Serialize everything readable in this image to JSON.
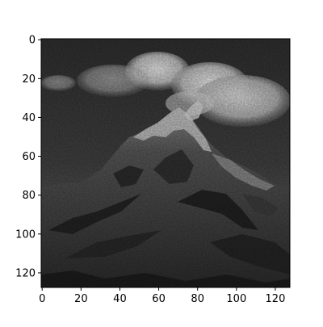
{
  "image": {
    "subject": "mountain-peak-photo",
    "colormap": "grayscale",
    "resolution": [
      128,
      128
    ],
    "xlim": [
      0,
      127
    ],
    "ylim": [
      127,
      0
    ],
    "x_ticks": [
      0,
      20,
      40,
      60,
      80,
      100,
      120
    ],
    "y_ticks": [
      0,
      20,
      40,
      60,
      80,
      100,
      120
    ],
    "x_tick_labels": [
      "0",
      "20",
      "40",
      "60",
      "80",
      "100",
      "120"
    ],
    "y_tick_labels": [
      "0",
      "20",
      "40",
      "60",
      "80",
      "100",
      "120"
    ],
    "colors": {
      "sky_dark": "#353535",
      "sky_light": "#5f5f5f",
      "cloud": "#d9d9d9",
      "snow": "#c9c9c9",
      "rock_dark": "#202020",
      "rock_mid": "#4a4a4a",
      "rock_light": "#7a7a7a",
      "axis": "#000000",
      "background": "#ffffff"
    }
  }
}
